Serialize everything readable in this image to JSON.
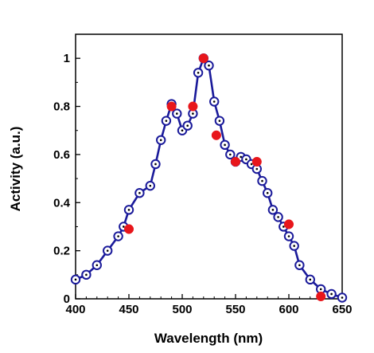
{
  "chart_data": {
    "type": "scatter",
    "title": "",
    "xlabel": "Wavelength (nm)",
    "ylabel": "Activity (a.u.)",
    "xlim": [
      400,
      650
    ],
    "ylim": [
      0,
      1.1
    ],
    "x_ticks": [
      400,
      450,
      500,
      550,
      600,
      650
    ],
    "x_tick_labels": [
      "400",
      "450",
      "500",
      "550",
      "600",
      "650"
    ],
    "y_ticks": [
      0,
      0.2,
      0.4,
      0.6,
      0.8,
      1
    ],
    "y_tick_labels": [
      "0",
      "0.2",
      "0.4",
      "0.6",
      "0.8",
      "1"
    ],
    "grid": false,
    "legend": "none",
    "series": [
      {
        "style": "line-with-open-circle-markers",
        "color": "#1a1a9a",
        "points": [
          {
            "x": 400,
            "y": 0.08
          },
          {
            "x": 410,
            "y": 0.1
          },
          {
            "x": 420,
            "y": 0.14
          },
          {
            "x": 430,
            "y": 0.2
          },
          {
            "x": 440,
            "y": 0.26
          },
          {
            "x": 445,
            "y": 0.3
          },
          {
            "x": 450,
            "y": 0.37
          },
          {
            "x": 460,
            "y": 0.44
          },
          {
            "x": 470,
            "y": 0.47
          },
          {
            "x": 475,
            "y": 0.56
          },
          {
            "x": 480,
            "y": 0.66
          },
          {
            "x": 485,
            "y": 0.74
          },
          {
            "x": 490,
            "y": 0.81
          },
          {
            "x": 495,
            "y": 0.77
          },
          {
            "x": 500,
            "y": 0.7
          },
          {
            "x": 505,
            "y": 0.72
          },
          {
            "x": 510,
            "y": 0.77
          },
          {
            "x": 515,
            "y": 0.94
          },
          {
            "x": 520,
            "y": 1.0
          },
          {
            "x": 525,
            "y": 0.97
          },
          {
            "x": 530,
            "y": 0.82
          },
          {
            "x": 535,
            "y": 0.74
          },
          {
            "x": 540,
            "y": 0.64
          },
          {
            "x": 545,
            "y": 0.6
          },
          {
            "x": 550,
            "y": 0.57
          },
          {
            "x": 555,
            "y": 0.59
          },
          {
            "x": 560,
            "y": 0.58
          },
          {
            "x": 565,
            "y": 0.56
          },
          {
            "x": 570,
            "y": 0.54
          },
          {
            "x": 575,
            "y": 0.49
          },
          {
            "x": 580,
            "y": 0.44
          },
          {
            "x": 585,
            "y": 0.37
          },
          {
            "x": 590,
            "y": 0.34
          },
          {
            "x": 595,
            "y": 0.3
          },
          {
            "x": 600,
            "y": 0.26
          },
          {
            "x": 605,
            "y": 0.22
          },
          {
            "x": 610,
            "y": 0.14
          },
          {
            "x": 620,
            "y": 0.08
          },
          {
            "x": 630,
            "y": 0.04
          },
          {
            "x": 640,
            "y": 0.02
          },
          {
            "x": 650,
            "y": 0.005
          }
        ]
      },
      {
        "style": "filled-circle-markers",
        "color": "#e8161b",
        "points": [
          {
            "x": 450,
            "y": 0.29
          },
          {
            "x": 490,
            "y": 0.8
          },
          {
            "x": 510,
            "y": 0.8
          },
          {
            "x": 520,
            "y": 1.0
          },
          {
            "x": 532,
            "y": 0.68
          },
          {
            "x": 550,
            "y": 0.57
          },
          {
            "x": 570,
            "y": 0.57
          },
          {
            "x": 600,
            "y": 0.31
          },
          {
            "x": 630,
            "y": 0.01
          }
        ]
      }
    ]
  }
}
